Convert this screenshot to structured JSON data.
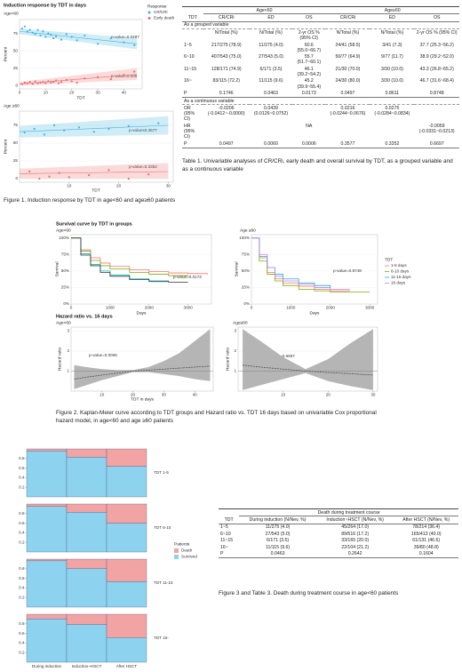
{
  "chart_data": [
    {
      "type": "scatter",
      "title": "Induction response by TDT in days",
      "subtitle": "Age<60",
      "xlabel": "TDT",
      "ylabel": "Percent",
      "legend_title": "Response",
      "xlim": [
        0,
        47
      ],
      "ylim": [
        -5,
        95
      ],
      "xticks": [
        0,
        10,
        20,
        30,
        40
      ],
      "yticks": [
        0,
        25,
        50,
        75
      ],
      "series": [
        {
          "name": "CR/CRi",
          "color": "#3fb4e0",
          "x": [
            1,
            2,
            3,
            4,
            5,
            6,
            7,
            8,
            9,
            10,
            11,
            12,
            13,
            14,
            16,
            18,
            20,
            22,
            25,
            30,
            35,
            40,
            44
          ],
          "values": [
            82,
            85,
            78,
            80,
            76,
            74,
            80,
            72,
            78,
            70,
            75,
            73,
            68,
            71,
            66,
            74,
            70,
            65,
            72,
            60,
            68,
            62,
            58
          ],
          "trend": {
            "x": [
              0,
              45
            ],
            "values": [
              78,
              60
            ],
            "lower": [
              74,
              52
            ],
            "upper": [
              82,
              68
            ]
          }
        },
        {
          "name": "Early death",
          "color": "#ee6b6b",
          "x": [
            1,
            2,
            3,
            4,
            5,
            6,
            7,
            8,
            9,
            10,
            11,
            12,
            13,
            14,
            15,
            16,
            18,
            20,
            22,
            25,
            30,
            35,
            40,
            44
          ],
          "values": [
            2,
            4,
            3,
            5,
            2,
            6,
            3,
            4,
            5,
            3,
            6,
            4,
            5,
            7,
            3,
            5,
            8,
            6,
            4,
            10,
            12,
            9,
            15,
            20
          ],
          "trend": {
            "x": [
              0,
              45
            ],
            "values": [
              2,
              16
            ],
            "lower": [
              0,
              8
            ],
            "upper": [
              5,
              25
            ]
          }
        }
      ],
      "annotations": [
        "p-value=0.0497",
        "p-value=0.006"
      ]
    },
    {
      "type": "scatter",
      "subtitle": "Age ≥60",
      "xlabel": "TDT",
      "ylabel": "Percent",
      "xlim": [
        0,
        31
      ],
      "ylim": [
        -5,
        95
      ],
      "xticks": [
        10,
        20,
        30
      ],
      "yticks": [
        0,
        25,
        50,
        75
      ],
      "series": [
        {
          "color": "#3fb4e0",
          "x": [
            1,
            3,
            5,
            7,
            9,
            12,
            15,
            18,
            22,
            25,
            28
          ],
          "values": [
            65,
            70,
            62,
            75,
            68,
            72,
            66,
            70,
            74,
            68,
            78
          ],
          "trend": {
            "x": [
              0,
              30
            ],
            "values": [
              66,
              75
            ],
            "lower": [
              58,
              62
            ],
            "upper": [
              74,
              88
            ]
          }
        },
        {
          "color": "#ee6b6b",
          "x": [
            2,
            4,
            6,
            8,
            10,
            14,
            18,
            22,
            26
          ],
          "values": [
            10,
            0,
            3,
            8,
            2,
            5,
            12,
            0,
            6
          ],
          "trend": {
            "x": [
              0,
              30
            ],
            "values": [
              7,
              10
            ],
            "lower": [
              0,
              0
            ],
            "upper": [
              14,
              22
            ]
          }
        }
      ],
      "annotations": [
        "p-value=0.3577",
        "p-value=0.3352"
      ]
    },
    {
      "type": "line",
      "step": true,
      "title": "Survival curve by TDT in groups",
      "subtitle": "Age<60",
      "xlabel": "Days",
      "ylabel": "Survival",
      "xlim": [
        0,
        3600
      ],
      "ylim": [
        0,
        1.05
      ],
      "xticks": [
        0,
        1000,
        2000,
        3000
      ],
      "yticks": [
        {
          "value": 0,
          "label": "0%"
        },
        {
          "value": 0.25,
          "label": "25%"
        },
        {
          "value": 0.5,
          "label": "50%"
        },
        {
          "value": 0.75,
          "label": "75%"
        },
        {
          "value": 1,
          "label": "100%"
        }
      ],
      "x": [
        0,
        250,
        500,
        750,
        1000,
        1500,
        2000,
        2500,
        3000,
        3500
      ],
      "series": [
        {
          "color": "#f8766d",
          "values": [
            1,
            0.82,
            0.7,
            0.62,
            0.57,
            0.52,
            0.49,
            0.47,
            0.46,
            0.45
          ]
        },
        {
          "color": "#7cae00",
          "values": [
            1,
            0.8,
            0.66,
            0.58,
            0.53,
            0.48,
            0.45,
            0.43,
            0.42,
            null
          ]
        },
        {
          "color": "#00bfc4",
          "values": [
            1,
            0.76,
            0.6,
            0.5,
            0.44,
            0.38,
            0.35,
            0.34,
            null,
            null
          ]
        },
        {
          "color": "#333333",
          "values": [
            1,
            0.74,
            0.58,
            0.48,
            0.42,
            0.37,
            0.34,
            0.33,
            0.33,
            null
          ]
        }
      ],
      "annotations": [
        "p-value=0.0173"
      ]
    },
    {
      "type": "line",
      "step": true,
      "subtitle": "Age ≥60",
      "xlabel": "Days",
      "ylabel": "Survival",
      "legend_title": "TDT",
      "xlim": [
        0,
        3200
      ],
      "ylim": [
        0,
        1.05
      ],
      "xticks": [
        0,
        1000,
        2000,
        3000
      ],
      "yticks": [
        {
          "value": 0,
          "label": "0%"
        },
        {
          "value": 0.25,
          "label": "25%"
        },
        {
          "value": 0.5,
          "label": "50%"
        },
        {
          "value": 0.75,
          "label": "75%"
        },
        {
          "value": 1,
          "label": "100%"
        }
      ],
      "x": [
        0,
        200,
        400,
        600,
        800,
        1200,
        1600,
        2000,
        2500,
        3000
      ],
      "series": [
        {
          "name": "1-5 days",
          "color": "#f8766d",
          "values": [
            1,
            0.7,
            0.48,
            0.38,
            0.32,
            0.27,
            0.22,
            0.2,
            0.2,
            null
          ]
        },
        {
          "name": "6-10 days",
          "color": "#7cae00",
          "values": [
            1,
            0.65,
            0.45,
            0.35,
            0.28,
            0.22,
            0.2,
            0.18,
            0.18,
            0.18
          ]
        },
        {
          "name": "11-15 days",
          "color": "#00bfc4",
          "values": [
            1,
            0.72,
            0.55,
            0.45,
            0.38,
            0.32,
            0.28,
            0.25,
            null,
            null
          ]
        },
        {
          "name": "16 days",
          "color": "#c77cff",
          "values": [
            1,
            0.75,
            0.55,
            0.42,
            0.35,
            0.3,
            0.25,
            0.22,
            0.22,
            null
          ]
        }
      ],
      "annotations": [
        "p-value=0.8748"
      ]
    },
    {
      "type": "band_line",
      "title": "Hazard ratio vs. 16 days",
      "subtitle": "Age<60",
      "xlabel": "TDT in days",
      "ylabel": "Hazard ratio",
      "xlim": [
        0,
        46
      ],
      "ylim": [
        0,
        3.2
      ],
      "xticks": [
        10,
        20,
        30,
        40
      ],
      "yticks": [
        1,
        2,
        3
      ],
      "hline": 1,
      "color": "#444444",
      "band_color": "#b5b5b5",
      "x": [
        1,
        5,
        10,
        15,
        20,
        25,
        30,
        35,
        40,
        45
      ],
      "values": [
        0.6,
        0.7,
        0.8,
        0.9,
        1.0,
        1.05,
        1.1,
        1.15,
        1.2,
        1.25
      ],
      "lower": [
        0.1,
        0.3,
        0.55,
        0.75,
        0.95,
        0.95,
        0.85,
        0.75,
        0.6,
        0.5
      ],
      "upper": [
        1.3,
        1.2,
        1.1,
        1.05,
        1.05,
        1.2,
        1.5,
        1.9,
        2.5,
        3.1
      ],
      "annotations": [
        "p-value=0.0006"
      ]
    },
    {
      "type": "band_line",
      "subtitle": "Age≥60",
      "ylabel": "Hazard ratio",
      "xlim": [
        0,
        31
      ],
      "ylim": [
        0,
        3.2
      ],
      "xticks": [
        10,
        20,
        30
      ],
      "yticks": [
        1,
        2,
        3
      ],
      "hline": 1,
      "color": "#444444",
      "band_color": "#b5b5b5",
      "x": [
        1,
        5,
        10,
        15,
        20,
        25,
        30
      ],
      "values": [
        1.3,
        1.2,
        1.1,
        1.0,
        0.93,
        0.87,
        0.8
      ],
      "lower": [
        0.05,
        0.3,
        0.6,
        0.9,
        0.5,
        0.25,
        0.05
      ],
      "upper": [
        3.1,
        2.5,
        1.7,
        1.1,
        1.6,
        2.4,
        3.1
      ],
      "annotations": [
        "p-value=0.6697"
      ]
    },
    {
      "type": "stacked_bar",
      "legend_title": "Patients",
      "categories": [
        "During induction",
        "Induction~HSCT",
        "After HSCT"
      ],
      "series": [
        {
          "name": "Death",
          "color": "#f2a3a3"
        },
        {
          "name": "Survived",
          "color": "#8dd2ee"
        }
      ],
      "ylim": [
        0,
        1
      ],
      "yticks": [
        0.2,
        0.4,
        0.6,
        0.8
      ],
      "panels": [
        {
          "label": "TDT 1-5",
          "values": [
            [
              0.04,
              0.17,
              0.364
            ],
            [
              0.96,
              0.83,
              0.636
            ]
          ]
        },
        {
          "label": "TDT 6-10",
          "values": [
            [
              0.05,
              0.172,
              0.4
            ],
            [
              0.95,
              0.828,
              0.6
            ]
          ]
        },
        {
          "label": "TDT 11-15",
          "values": [
            [
              0.035,
              0.2,
              0.466
            ],
            [
              0.965,
              0.8,
              0.534
            ]
          ]
        },
        {
          "label": "TDT 16-",
          "values": [
            [
              0.096,
              0.212,
              0.488
            ],
            [
              0.904,
              0.788,
              0.512
            ]
          ]
        }
      ]
    }
  ],
  "figure1_caption": "Figure 1. Induction response by TDT in age<60 and age≥60 patients",
  "figure2_caption": "Figure 2. Kaplan-Meier curve according to TDT groups and Hazard ratio vs. TDT 16 days based on univariable Cox proportional hazard model, in age<60 and age ≥60 patients",
  "table1": {
    "group_headers": [
      "Age<60",
      "Age≥60"
    ],
    "columns": [
      "TDT",
      "CR/CRi",
      "ED",
      "OS",
      "CR/CRi",
      "ED",
      "OS"
    ],
    "sections": [
      {
        "label": "As a grouped variable",
        "rows": [
          [
            null,
            "N/Total (%)",
            "N/Total (%)",
            "2-yr OS % (95% CI)",
            "N/Total (%)",
            "N/Total (%)",
            "2-yr OS % (95% CI)"
          ],
          [
            "1~5",
            "217/275 (78.9)",
            "11/275 (4.0)",
            "60.6 (55.0~66.7)",
            "24/41 (58.5)",
            "3/41 (7.3)",
            "37.7 (25.3~56.2)"
          ],
          [
            "6~10",
            "407/543 (75.0)",
            "27/543 (5.0)",
            "55.7 (51.7~60.1)",
            "50/77 (64.9)",
            "9/77 (11.7)",
            "38.9 (29.2~52.0)"
          ],
          [
            "11~15",
            "128/171 (74.9)",
            "6/171 (3.5)",
            "46.1 (39.2~54.2)",
            "21/30 (70.0)",
            "3/30 (10.0)",
            "43.3 (26.8~65.2)"
          ],
          [
            "16~",
            "83/115 (72.2)",
            "11/115 (9.6)",
            "45.2 (39.9~55.4)",
            "24/30 (80.0)",
            "3/30 (10.0)",
            "46.7 (31.6~68.4)"
          ],
          [
            "P",
            "0.1746",
            "0.0463",
            "0.0173",
            "0.0497",
            "0.8611",
            "0.8748"
          ]
        ]
      },
      {
        "label": "As a continuous variable",
        "rows": [
          [
            "OR (95% CI)",
            "-0.0206 (-0.0412~-0.0000)",
            "0.0439 (0.0126~0.0752)",
            null,
            "0.0216 (-0.0244~0.0676)",
            "0.0275 (-0.0284~0.0834)",
            null
          ],
          [
            "HR (95% CI)",
            null,
            null,
            "NA",
            null,
            null,
            "-0.0059 (-0.0331~0.0213)"
          ],
          [
            "P",
            "0.0497",
            "0.0060",
            "0.0006",
            "0.3577",
            "0.3352",
            "0.6697"
          ]
        ]
      }
    ],
    "caption": "Table 1. Univariable analyses of CR/CRi, early death and overall survival by TDT, as a grouped variable and as a continuous variable"
  },
  "table3": {
    "title": "Death during treatment course",
    "columns": [
      "TDT",
      "During induction (N/Nev, %)",
      "Induction~HSCT (N/Nev, %)",
      "After HSCT (N/Nev, %)"
    ],
    "rows": [
      [
        "1~5",
        "11/275 (4.0)",
        "45/264 (17.0)",
        "78/214 (36.4)"
      ],
      [
        "6~10",
        "27/543 (5.0)",
        "89/516 (17.2)",
        "165/413 (40.0)"
      ],
      [
        "11~15",
        "6/171 (3.5)",
        "33/165 (20.0)",
        "61/131 (46.6)"
      ],
      [
        "16~",
        "11/115 (9.6)",
        "22/104 (21.2)",
        "39/80 (48.8)"
      ],
      [
        "P",
        "0.0463",
        "0.2642",
        "0.1604"
      ]
    ],
    "caption": "Figure 3 and Table 3. Death during treatment course in age<60 patients"
  }
}
